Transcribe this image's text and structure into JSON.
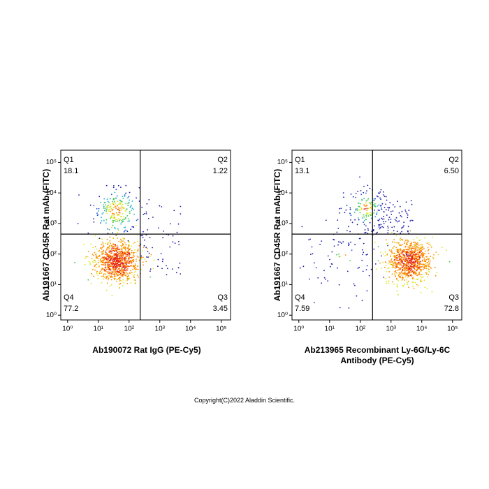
{
  "chart_data": [
    {
      "type": "scatter",
      "log_scale": true,
      "x_label": "Ab190072 Rat IgG (PE-Cy5)",
      "y_label": "Ab191667 CD45R Rat mAb (FITC)",
      "xlim": [
        0.6,
        200000
      ],
      "ylim": [
        0.7,
        250000
      ],
      "xticks": [
        {
          "value": 1,
          "label": "10⁰"
        },
        {
          "value": 10,
          "label": "10¹"
        },
        {
          "value": 100,
          "label": "10²"
        },
        {
          "value": 1000,
          "label": "10³"
        },
        {
          "value": 10000,
          "label": "10⁴"
        },
        {
          "value": 100000,
          "label": "10⁵"
        }
      ],
      "yticks": [
        {
          "value": 1,
          "label": "10⁰"
        },
        {
          "value": 10,
          "label": "10¹"
        },
        {
          "value": 100,
          "label": "10²"
        },
        {
          "value": 1000,
          "label": "10³"
        },
        {
          "value": 10000,
          "label": "10⁴"
        },
        {
          "value": 100000,
          "label": "10⁵"
        }
      ],
      "gate": {
        "x": 230,
        "y": 450
      },
      "quadrants": [
        "Q1",
        "Q2",
        "Q3",
        "Q4"
      ],
      "values": [
        18.1,
        1.22,
        3.45,
        77.2
      ],
      "populations": [
        {
          "x": 40,
          "y": 60
        },
        {
          "x": 40,
          "y": 2500
        }
      ]
    },
    {
      "type": "scatter",
      "log_scale": true,
      "x_label": "Ab213965 Recombinant Ly-6G/Ly-6C Antibody (PE-Cy5)",
      "y_label": "Ab191667 CD45R Rat mAb (FITC)",
      "xlim": [
        0.6,
        200000
      ],
      "ylim": [
        0.7,
        250000
      ],
      "xticks": [
        {
          "value": 1,
          "label": "10⁰"
        },
        {
          "value": 10,
          "label": "10¹"
        },
        {
          "value": 100,
          "label": "10²"
        },
        {
          "value": 1000,
          "label": "10³"
        },
        {
          "value": 10000,
          "label": "10⁴"
        },
        {
          "value": 100000,
          "label": "10⁵"
        }
      ],
      "yticks": [
        {
          "value": 1,
          "label": "10⁰"
        },
        {
          "value": 10,
          "label": "10¹"
        },
        {
          "value": 100,
          "label": "10²"
        },
        {
          "value": 1000,
          "label": "10³"
        },
        {
          "value": 10000,
          "label": "10⁴"
        },
        {
          "value": 100000,
          "label": "10⁵"
        }
      ],
      "gate": {
        "x": 250,
        "y": 450
      },
      "quadrants": [
        "Q1",
        "Q2",
        "Q3",
        "Q4"
      ],
      "values": [
        13.1,
        6.5,
        72.8,
        7.59
      ],
      "value_labels": [
        "13.1",
        "6.50",
        "72.8",
        "7.59"
      ],
      "populations": [
        {
          "x": 150,
          "y": 3000
        },
        {
          "x": 4000,
          "y": 60
        },
        {
          "x": 30,
          "y": 80
        }
      ]
    }
  ],
  "footer": "Copyright(C)2022 Aladdin Scientific."
}
